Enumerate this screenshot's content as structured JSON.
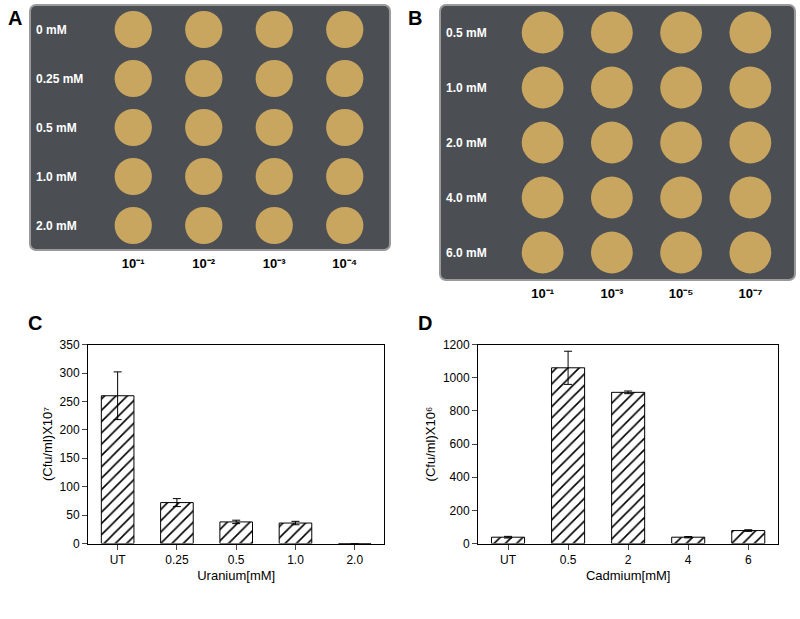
{
  "plates": [
    {
      "title": "A",
      "rows": [
        "0 mM",
        "0.25 mM",
        "0.5 mM",
        "1.0 mM",
        "2.0 mM"
      ],
      "columns": [
        "10⁻¹",
        "10⁻²",
        "10⁻³",
        "10⁻⁴"
      ]
    },
    {
      "title": "B",
      "rows": [
        "0.5 mM",
        "1.0 mM",
        "2.0 mM",
        "4.0 mM",
        "6.0 mM"
      ],
      "columns": [
        "10⁻¹",
        "10⁻³",
        "10⁻⁵",
        "10⁻⁷"
      ]
    }
  ],
  "chart_data": [
    {
      "type": "bar",
      "title": "C",
      "categories": [
        "UT",
        "0.25",
        "0.5",
        "1.0",
        "2.0"
      ],
      "values": [
        260,
        72,
        38,
        36,
        0
      ],
      "errors": [
        42,
        7,
        3,
        3,
        0
      ],
      "color": "#ffffff",
      "xlabel": "Uranium[mM]",
      "ylabel": "(Cfu/ml)X10⁷",
      "ylim": [
        0,
        350
      ],
      "yticks": [
        0,
        50,
        100,
        150,
        200,
        250,
        300,
        350
      ],
      "grid": false
    },
    {
      "type": "bar",
      "title": "D",
      "categories": [
        "UT",
        "0.5",
        "2",
        "4",
        "6"
      ],
      "values": [
        38,
        1060,
        912,
        38,
        78
      ],
      "errors": [
        5,
        100,
        8,
        4,
        5
      ],
      "color": "#ffffff",
      "xlabel": "Cadmium[mM]",
      "ylabel": "(Cfu/ml)X10⁶",
      "ylim": [
        0,
        1200
      ],
      "yticks": [
        0,
        200,
        400,
        600,
        800,
        1000,
        1200
      ],
      "grid": false
    }
  ]
}
